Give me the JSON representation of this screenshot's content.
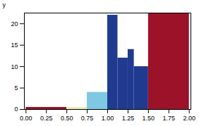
{
  "chart_data": {
    "type": "histogram",
    "ylabel": "y",
    "bins": [
      0.0,
      0.5,
      0.75,
      1.0,
      1.125,
      1.25,
      1.325,
      1.5,
      2.0
    ],
    "values": [
      0.5,
      0.5,
      4.0,
      22.0,
      12.0,
      14.0,
      10.0,
      22.5
    ],
    "colors": [
      "#9B1229",
      "#F0EBB5",
      "#7EC8E3",
      "#1F3A8F",
      "#1F3A8F",
      "#1F3A8F",
      "#1F3A8F",
      "#9B1229"
    ],
    "xlim": [
      -0.02,
      2.02
    ],
    "ylim": [
      0,
      22.5
    ],
    "xticks": [
      {
        "value": 0.0,
        "label": "0.00"
      },
      {
        "value": 0.25,
        "label": "0.25"
      },
      {
        "value": 0.5,
        "label": "0.50"
      },
      {
        "value": 0.75,
        "label": "0.75"
      },
      {
        "value": 1.0,
        "label": "1.00"
      },
      {
        "value": 1.25,
        "label": "1.25"
      },
      {
        "value": 1.5,
        "label": "1.50"
      },
      {
        "value": 1.75,
        "label": "1.75"
      },
      {
        "value": 2.0,
        "label": "2.00"
      }
    ],
    "yticks": [
      0,
      5,
      10,
      15,
      20
    ]
  }
}
